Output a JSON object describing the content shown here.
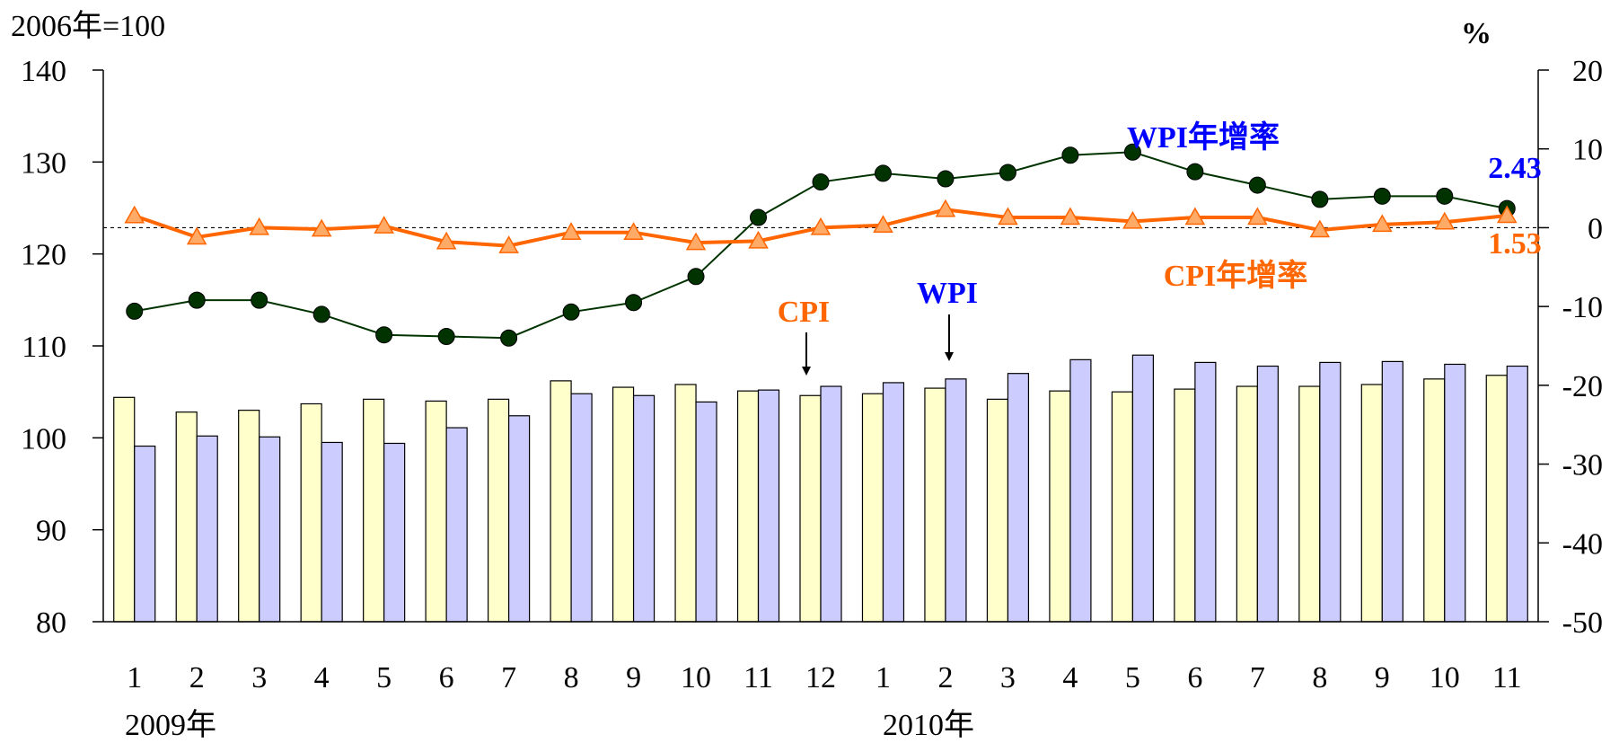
{
  "chart_data": {
    "type": "bar",
    "left_axis_title": "2006年=100",
    "right_axis_title": "%",
    "left_ticks": [
      "140",
      "130",
      "120",
      "110",
      "100",
      "90",
      "80"
    ],
    "right_ticks": [
      "20",
      "10",
      "0",
      "-10",
      "-20",
      "-30",
      "-40",
      "-50"
    ],
    "ylim_left": [
      80,
      140
    ],
    "ylim_right": [
      -50,
      20
    ],
    "categories": [
      "1",
      "2",
      "3",
      "4",
      "5",
      "6",
      "7",
      "8",
      "9",
      "10",
      "11",
      "12",
      "1",
      "2",
      "3",
      "4",
      "5",
      "6",
      "7",
      "8",
      "9",
      "10",
      "11"
    ],
    "year_labels": [
      "2009年",
      "2010年"
    ],
    "series": [
      {
        "name": "CPI",
        "type": "bar",
        "axis": "left",
        "color": "#ffffcc",
        "values": [
          104.4,
          102.8,
          103.0,
          103.7,
          104.2,
          104.0,
          104.2,
          106.2,
          105.5,
          105.8,
          105.1,
          104.6,
          104.8,
          105.4,
          104.2,
          105.1,
          105.0,
          105.3,
          105.6,
          105.6,
          105.8,
          106.4,
          106.8
        ]
      },
      {
        "name": "WPI",
        "type": "bar",
        "axis": "left",
        "color": "#ccccff",
        "values": [
          99.1,
          100.2,
          100.1,
          99.5,
          99.4,
          101.1,
          102.4,
          104.8,
          104.6,
          103.9,
          105.2,
          105.6,
          106.0,
          106.4,
          107.0,
          108.5,
          109.0,
          108.2,
          107.8,
          108.2,
          108.3,
          108.0,
          107.8
        ]
      },
      {
        "name": "WPI年增率",
        "type": "line",
        "axis": "right",
        "color": "#003300",
        "values": [
          -10.6,
          -9.2,
          -9.2,
          -11.0,
          -13.6,
          -13.8,
          -14.0,
          -10.7,
          -9.5,
          -6.2,
          1.3,
          5.8,
          6.9,
          6.2,
          7.0,
          9.2,
          9.6,
          7.1,
          5.4,
          3.6,
          4.0,
          4.0,
          2.43
        ]
      },
      {
        "name": "CPI年增率",
        "type": "line",
        "axis": "right",
        "color": "#ff6600",
        "values": [
          1.5,
          -1.2,
          0.0,
          -0.2,
          0.2,
          -1.8,
          -2.3,
          -0.6,
          -0.6,
          -1.9,
          -1.7,
          0.0,
          0.3,
          2.3,
          1.3,
          1.3,
          0.8,
          1.3,
          1.3,
          -0.3,
          0.4,
          0.7,
          1.53
        ]
      }
    ],
    "annotations": {
      "wpi_rate_last": "2.43",
      "cpi_rate_last": "1.53",
      "cpi_bar_label": "CPI",
      "wpi_bar_label": "WPI",
      "wpi_rate_label": "WPI年增率",
      "cpi_rate_label": "CPI年增率"
    },
    "zero_reference_line": "dashed",
    "colors": {
      "wpi_label": "#0000ff",
      "cpi_label": "#ff6600"
    }
  }
}
